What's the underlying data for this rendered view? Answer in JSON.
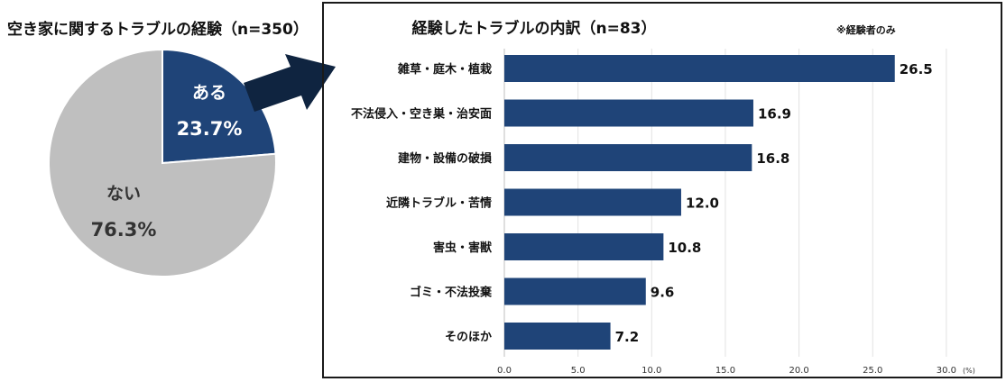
{
  "pie": {
    "title": "空き家に関するトラブルの経験（n=350）"
  },
  "bar": {
    "title": "経験したトラブルの内訳（n=83）",
    "note": "※経験者のみ",
    "unit": "(%)"
  },
  "chart_data": [
    {
      "type": "pie",
      "title": "空き家に関するトラブルの経験（n=350）",
      "slices": [
        {
          "label": "ある",
          "value": 23.7,
          "value_label": "23.7%",
          "color": "#1f4478"
        },
        {
          "label": "ない",
          "value": 76.3,
          "value_label": "76.3%",
          "color": "#bfbfbf"
        }
      ]
    },
    {
      "type": "bar",
      "orientation": "horizontal",
      "title": "経験したトラブルの内訳（n=83）",
      "categories": [
        "雑草・庭木・植栽",
        "不法侵入・空き巣・治安面",
        "建物・設備の破損",
        "近隣トラブル・苦情",
        "害虫・害獣",
        "ゴミ・不法投棄",
        "そのほか"
      ],
      "values": [
        26.5,
        16.9,
        16.8,
        12.0,
        10.8,
        9.6,
        7.2
      ],
      "value_labels": [
        "26.5",
        "16.9",
        "16.8",
        "12.0",
        "10.8",
        "9.6",
        "7.2"
      ],
      "xlim": [
        0,
        30
      ],
      "xticks": [
        "0.0",
        "5.0",
        "10.0",
        "15.0",
        "20.0",
        "25.0",
        "30.0"
      ],
      "xlabel": "(%)",
      "grid": true,
      "color": "#1f4478"
    }
  ]
}
